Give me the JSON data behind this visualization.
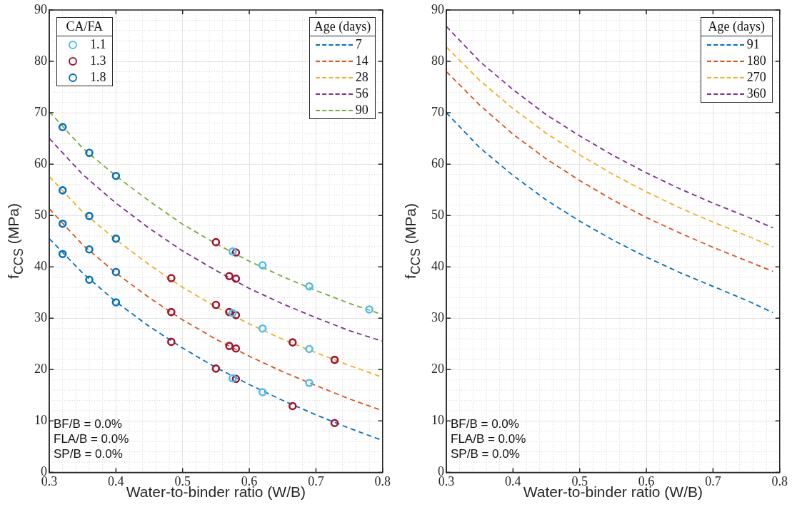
{
  "chart_data": [
    {
      "type": "line",
      "xlabel": "Water-to-binder ratio (W/B)",
      "ylabel": "f$_{CCS}$ (MPa)",
      "xlim": [
        0.3,
        0.8
      ],
      "xticks": [
        0.3,
        0.4,
        0.5,
        0.6,
        0.7,
        0.8
      ],
      "ylim": [
        0,
        90
      ],
      "yticks": [
        0,
        10,
        20,
        30,
        40,
        50,
        60,
        70,
        80,
        90
      ],
      "grid": true,
      "legend": "top right",
      "legend_title": "Age (days)",
      "line_style": "dashed",
      "x": [
        0.3,
        0.35,
        0.4,
        0.45,
        0.5,
        0.55,
        0.6,
        0.65,
        0.7,
        0.75,
        0.8
      ],
      "series": [
        {
          "name": "7",
          "color": "#0072bd",
          "values": [
            45.5,
            38.8,
            33.2,
            28.4,
            24.2,
            20.4,
            17.1,
            14.0,
            11.2,
            8.6,
            6.2
          ]
        },
        {
          "name": "14",
          "color": "#d95319",
          "values": [
            51.3,
            44.3,
            38.8,
            34.0,
            29.7,
            25.9,
            22.6,
            19.6,
            16.9,
            14.3,
            12.0
          ]
        },
        {
          "name": "28",
          "color": "#edb120",
          "values": [
            57.6,
            50.7,
            45.3,
            40.4,
            36.0,
            32.2,
            28.9,
            25.9,
            23.3,
            20.8,
            18.5
          ]
        },
        {
          "name": "56",
          "color": "#7e2f8e",
          "values": [
            65.0,
            58.0,
            52.4,
            47.5,
            43.1,
            39.3,
            35.8,
            32.8,
            30.1,
            27.6,
            25.5
          ]
        },
        {
          "name": "90",
          "color": "#77ac30",
          "values": [
            70.2,
            63.1,
            57.7,
            52.8,
            48.3,
            44.5,
            41.1,
            38.1,
            35.4,
            32.9,
            30.7
          ]
        },
        {
          "name": "1.1",
          "type": "scatter",
          "color": "#4dbeee",
          "x": [
            0.575,
            0.62,
            0.69,
            0.78,
            0.575,
            0.62,
            0.69,
            0.575,
            0.62,
            0.69
          ],
          "values": [
            43.0,
            40.3,
            36.2,
            31.7,
            31.0,
            28.0,
            24.0,
            18.3,
            15.6,
            17.4
          ]
        },
        {
          "name": "1.3",
          "type": "scatter",
          "color": "#a2142f",
          "x": [
            0.55,
            0.58,
            0.483,
            0.57,
            0.58,
            0.55,
            0.57,
            0.58,
            0.483,
            0.57,
            0.58,
            0.665,
            0.728,
            0.483,
            0.55,
            0.58,
            0.665,
            0.728
          ],
          "values": [
            44.8,
            42.8,
            37.8,
            38.2,
            37.7,
            32.6,
            31.2,
            30.6,
            31.2,
            24.6,
            24.1,
            25.3,
            21.9,
            25.4,
            20.2,
            18.2,
            12.9,
            9.6
          ]
        },
        {
          "name": "1.8",
          "type": "scatter",
          "color": "#0072bd",
          "x": [
            0.32,
            0.32,
            0.32,
            0.32,
            0.36,
            0.36,
            0.36,
            0.36,
            0.4,
            0.4,
            0.4,
            0.4
          ],
          "values": [
            67.2,
            54.9,
            48.4,
            42.5,
            62.2,
            49.9,
            43.4,
            37.5,
            57.7,
            45.5,
            39.0,
            33.1
          ]
        }
      ],
      "annotations": [
        "CA/FA",
        "BF/B = 0.0%",
        "FLA/B = 0.0%",
        "SP/B = 0.0%"
      ]
    },
    {
      "type": "line",
      "xlabel": "Water-to-binder ratio (W/B)",
      "ylabel": "f$_{CCS}$ (MPa)",
      "xlim": [
        0.3,
        0.8
      ],
      "xticks": [
        0.3,
        0.4,
        0.5,
        0.6,
        0.7,
        0.8
      ],
      "ylim": [
        0,
        90
      ],
      "yticks": [
        0,
        10,
        20,
        30,
        40,
        50,
        60,
        70,
        80,
        90
      ],
      "grid": true,
      "legend": "top right",
      "legend_title": "Age (days)",
      "line_style": "dashed",
      "x": [
        0.3,
        0.35,
        0.4,
        0.45,
        0.5,
        0.55,
        0.6,
        0.65,
        0.7,
        0.75,
        0.79
      ],
      "series": [
        {
          "name": "91",
          "color": "#0072bd",
          "values": [
            70.0,
            63.2,
            57.8,
            53.0,
            48.9,
            45.2,
            41.9,
            38.9,
            36.2,
            33.5,
            31.1
          ]
        },
        {
          "name": "180",
          "color": "#d95319",
          "values": [
            78.0,
            71.5,
            65.8,
            61.0,
            56.8,
            53.0,
            49.6,
            46.6,
            43.8,
            41.2,
            39.1
          ]
        },
        {
          "name": "270",
          "color": "#edb120",
          "values": [
            82.8,
            76.3,
            70.8,
            66.0,
            61.8,
            58.0,
            54.6,
            51.5,
            48.7,
            46.1,
            43.9
          ]
        },
        {
          "name": "360",
          "color": "#7e2f8e",
          "values": [
            86.8,
            80.0,
            74.5,
            69.6,
            65.5,
            61.7,
            58.3,
            55.2,
            52.4,
            49.8,
            47.6
          ]
        }
      ],
      "annotations": [
        "BF/B = 0.0%",
        "FLA/B = 0.0%",
        "SP/B = 0.0%"
      ]
    }
  ]
}
